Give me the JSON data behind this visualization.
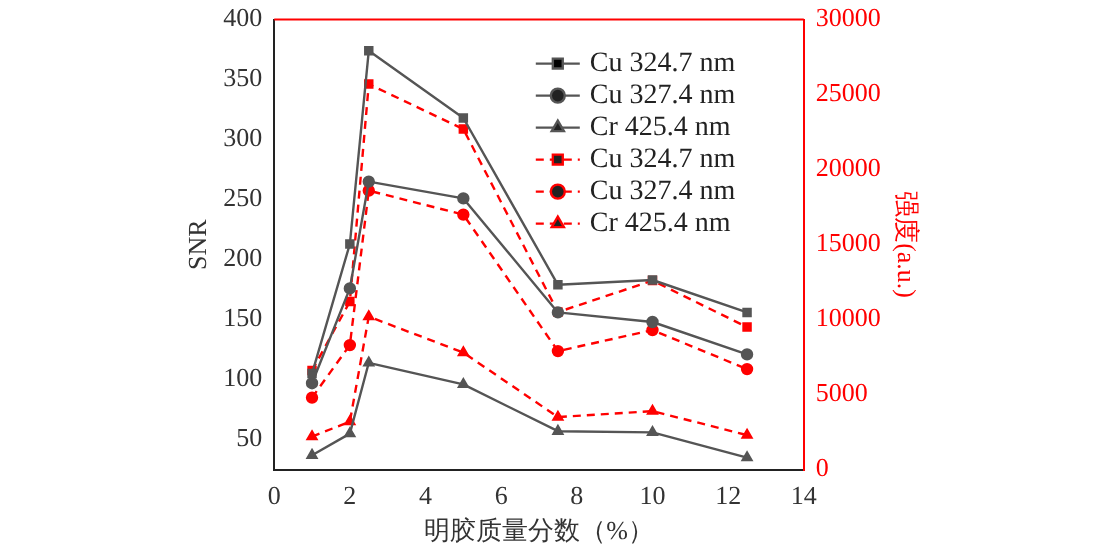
{
  "chart_data": {
    "type": "line",
    "xlabel": "明胶质量分数（%）",
    "ylabel": "SNR",
    "y2label": "强度(a.u.)",
    "x": [
      1,
      2,
      2.5,
      5,
      7.5,
      10,
      12.5
    ],
    "xlim": [
      0,
      14
    ],
    "xticks": [
      0,
      2,
      4,
      6,
      8,
      10,
      12,
      14
    ],
    "ylim": [
      25,
      400
    ],
    "yticks": [
      50,
      100,
      150,
      200,
      250,
      300,
      350,
      400
    ],
    "y2lim": [
      0,
      30000
    ],
    "y2ticks": [
      0,
      5000,
      10000,
      15000,
      20000,
      25000,
      30000
    ],
    "grid": false,
    "legend": "top right",
    "series": [
      {
        "name": "Cu 324.7 nm",
        "color": "#555555",
        "marker": "square",
        "line_style": "solid",
        "values": [
          105,
          213,
          374,
          318,
          179,
          183,
          156
        ]
      },
      {
        "name": "Cu 327.4 nm",
        "color": "#555555",
        "marker": "circle",
        "line_style": "solid",
        "values": [
          97,
          176,
          265,
          251,
          156,
          148,
          121
        ]
      },
      {
        "name": "Cr 425.4 nm",
        "color": "#555555",
        "marker": "triangle",
        "line_style": "solid",
        "values": [
          37,
          55,
          114,
          96,
          57,
          56,
          35
        ]
      },
      {
        "name": "Cu 324.7 nm",
        "color": "#ff0000",
        "marker": "square",
        "line_style": "dashed",
        "axis": "y2",
        "values": [
          6600,
          11200,
          25700,
          22700,
          10500,
          12600,
          9500
        ]
      },
      {
        "name": "Cu 327.4 nm",
        "color": "#ff0000",
        "marker": "circle",
        "line_style": "dashed",
        "axis": "y2",
        "values": [
          4800,
          8300,
          18600,
          17000,
          7900,
          9300,
          6700
        ]
      },
      {
        "name": "Cr 425.4 nm",
        "color": "#ff0000",
        "marker": "triangle",
        "line_style": "dashed",
        "axis": "y2",
        "values": [
          2200,
          3200,
          10200,
          7800,
          3500,
          3900,
          2300
        ]
      }
    ]
  }
}
